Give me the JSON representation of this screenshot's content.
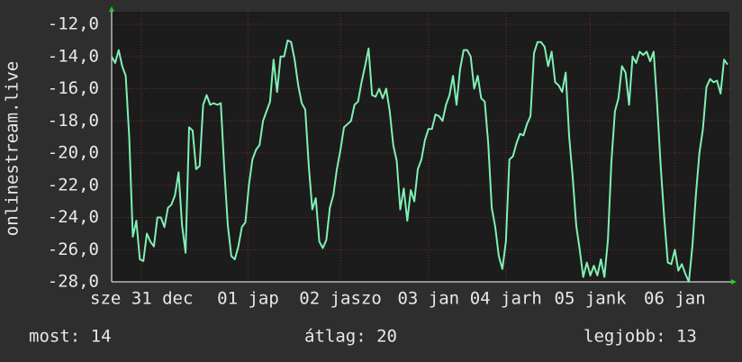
{
  "chart_data": {
    "type": "line",
    "y_label": "onlinestream.live",
    "series": [
      {
        "name": null,
        "color": "#7ff0b4",
        "values": [
          -14.0,
          -14.4,
          -13.6,
          -14.6,
          -15.2,
          -19,
          -25.2,
          -24.2,
          -26.6,
          -26.7,
          -25,
          -25.5,
          -25.8,
          -24.0,
          -24.0,
          -24.6,
          -23.4,
          -23.2,
          -22.6,
          -21.2,
          -24.5,
          -26.2,
          -18.4,
          -18.6,
          -21,
          -20.8,
          -17.0,
          -16.4,
          -17.0,
          -16.9,
          -17.0,
          -16.9,
          -21,
          -24.5,
          -26.4,
          -26.6,
          -25.8,
          -24.6,
          -24.3,
          -22,
          -20.4,
          -19.8,
          -19.5,
          -18,
          -17.4,
          -16.8,
          -14.2,
          -16.2,
          -14.0,
          -14.0,
          -13.0,
          -13.1,
          -14.2,
          -15.8,
          -16.9,
          -17.3,
          -20.8,
          -23.5,
          -22.8,
          -25.5,
          -25.9,
          -25.4,
          -23.4,
          -22.6,
          -21,
          -19.8,
          -18.4,
          -18.2,
          -18.0,
          -17.0,
          -16.8,
          -15.6,
          -14.6,
          -13.5,
          -16.4,
          -16.5,
          -16.0,
          -16.6,
          -16.0,
          -17.4,
          -19.5,
          -20.5,
          -23.5,
          -22.2,
          -24.2,
          -22.3,
          -23.0,
          -21.0,
          -20.4,
          -19.2,
          -18.5,
          -18.5,
          -17.6,
          -17.7,
          -18.0,
          -17.0,
          -16.4,
          -15.2,
          -17.0,
          -14.8,
          -13.6,
          -13.6,
          -14.0,
          -16.0,
          -15.2,
          -16.6,
          -16.8,
          -19.4,
          -23.4,
          -24.6,
          -26.4,
          -27.2,
          -25.5,
          -20.4,
          -20.2,
          -19.4,
          -18.8,
          -18.9,
          -18.2,
          -17.7,
          -13.8,
          -13.1,
          -13.1,
          -13.4,
          -14.6,
          -13.7,
          -15.6,
          -15.8,
          -16.2,
          -15.0,
          -19,
          -21.5,
          -24.5,
          -26,
          -27.7,
          -26.8,
          -27.6,
          -27.0,
          -27.6,
          -26.6,
          -27.7,
          -25.4,
          -20.5,
          -17.4,
          -16.6,
          -14.6,
          -15,
          -17.0,
          -14.0,
          -14.4,
          -13.7,
          -13.9,
          -13.7,
          -14.3,
          -13.7,
          -17.0,
          -20.8,
          -24.0,
          -26.8,
          -26.9,
          -26.0,
          -27.3,
          -26.9,
          -27.5,
          -28.0,
          -25.8,
          -22.6,
          -20.0,
          -18.5,
          -15.9,
          -15.4,
          -15.6,
          -15.5,
          -16.3,
          -14.2,
          -14.5
        ]
      }
    ],
    "ylim": [
      -28,
      -12
    ],
    "yticks": [
      {
        "value": -28,
        "label": "-28,0"
      },
      {
        "value": -26,
        "label": "-26,0"
      },
      {
        "value": -24,
        "label": "-24,0"
      },
      {
        "value": -22,
        "label": "-22,0"
      },
      {
        "value": -20,
        "label": "-20,0"
      },
      {
        "value": -18,
        "label": "-18,0"
      },
      {
        "value": -16,
        "label": "-16,0"
      },
      {
        "value": -14,
        "label": "-14,0"
      },
      {
        "value": -12,
        "label": "-12,0"
      }
    ],
    "xticks": [
      {
        "value": 8.5,
        "label": "sze 31 dec"
      },
      {
        "value": 38.75,
        "label": "01 jap"
      },
      {
        "value": 65,
        "label": "02 jaszo"
      },
      {
        "value": 90,
        "label": "03 jan"
      },
      {
        "value": 112,
        "label": "04 jarh"
      },
      {
        "value": 136,
        "label": "05 jank"
      },
      {
        "value": 160,
        "label": "06 jan"
      }
    ],
    "grid": true,
    "stats": {
      "current": "most: 14",
      "average": "átlag: 20",
      "best": "legjobb: 13"
    }
  }
}
